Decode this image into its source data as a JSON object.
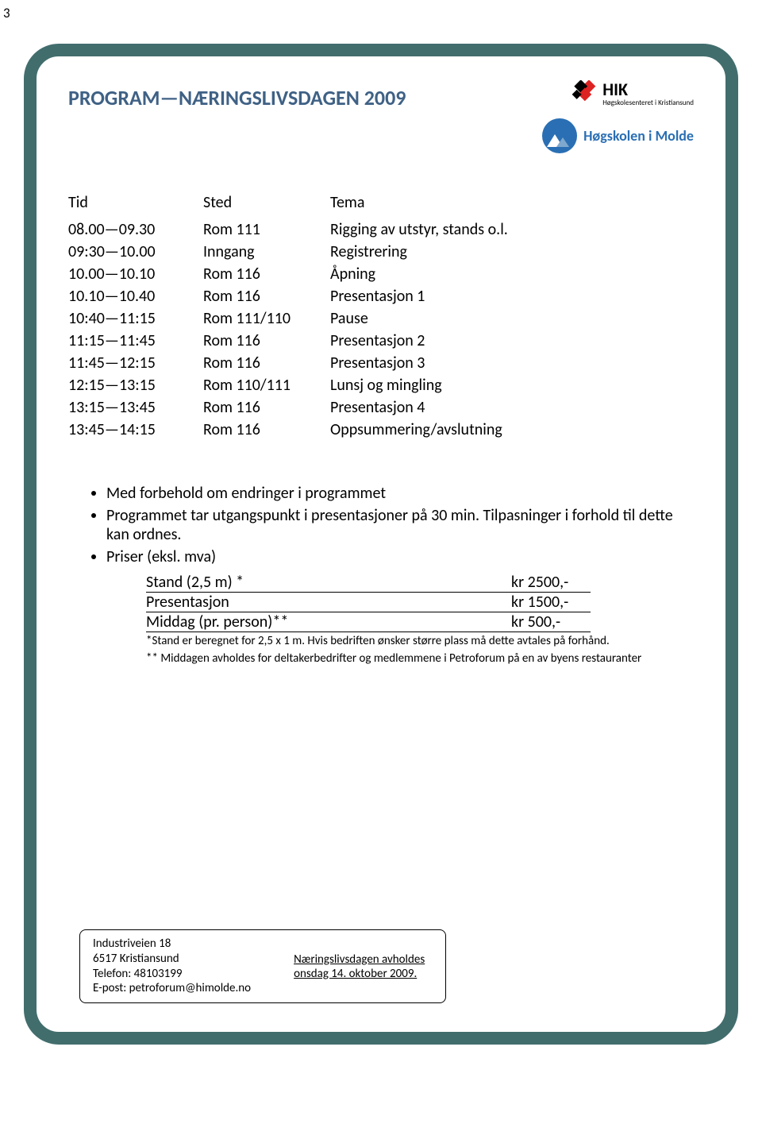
{
  "page_number": "3",
  "title": "PROGRAM—NÆRINGSLIVSDAGEN 2009",
  "logos": {
    "hik_big": "HIK",
    "hik_small": "Høgskolesenteret i Kristiansund",
    "molde": "Høgskolen i Molde"
  },
  "colors": {
    "frame": "#426d6d",
    "title": "#3f6185",
    "molde_blue": "#2a6fb4",
    "text": "#000000",
    "background": "#ffffff"
  },
  "schedule": {
    "columns": [
      "Tid",
      "Sted",
      "Tema"
    ],
    "rows": [
      [
        "08.00—09.30",
        "Rom 111",
        "Rigging av utstyr, stands o.l."
      ],
      [
        "09:30—10.00",
        "Inngang",
        "Registrering"
      ],
      [
        "10.00—10.10",
        "Rom 116",
        "Åpning"
      ],
      [
        "10.10—10.40",
        "Rom 116",
        "Presentasjon 1"
      ],
      [
        "10:40—11:15",
        "Rom 111/110",
        "Pause"
      ],
      [
        "11:15—11:45",
        "Rom 116",
        "Presentasjon 2"
      ],
      [
        "11:45—12:15",
        "Rom 116",
        "Presentasjon 3"
      ],
      [
        "12:15—13:15",
        "Rom 110/111",
        "Lunsj og mingling"
      ],
      [
        "13:15—13:45",
        "Rom 116",
        "Presentasjon 4"
      ],
      [
        "13:45—14:15",
        "Rom 116",
        "Oppsummering/avslutning"
      ]
    ]
  },
  "notes": {
    "b1": "Med forbehold om endringer i programmet",
    "b2": "Programmet tar utgangspunkt i presentasjoner på 30 min. Tilpasninger i forhold til dette kan ordnes.",
    "b3": "Priser (eksl. mva)",
    "prices": [
      {
        "label": "Stand (2,5 m) *",
        "value": "kr 2500,-"
      },
      {
        "label": "Presentasjon",
        "value": "kr 1500,-"
      },
      {
        "label": "Middag (pr. person)**",
        "value": "kr 500,-"
      }
    ],
    "fine1": "*Stand er beregnet for 2,5 x 1 m. Hvis bedriften ønsker større plass må dette avtales på forhånd.",
    "fine2": "** Middagen avholdes for deltakerbedrifter og medlemmene i Petroforum på en av byens restauranter"
  },
  "footer": {
    "addr_l1": "Industriveien 18",
    "addr_l2": "6517 Kristiansund",
    "addr_l3": "Telefon: 48103199",
    "addr_l4": "E-post: petroforum@himolde.no",
    "event_l1": "Næringslivsdagen avholdes",
    "event_l2": "onsdag 14. oktober 2009."
  }
}
